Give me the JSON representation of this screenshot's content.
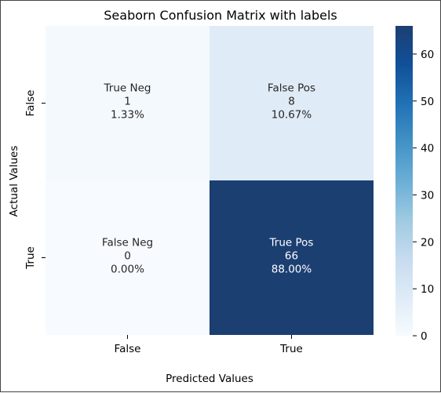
{
  "chart_data": {
    "type": "heatmap",
    "title": "Seaborn Confusion Matrix with labels",
    "xlabel": "Predicted Values",
    "ylabel": "Actual Values",
    "x_categories": [
      "False",
      "True"
    ],
    "y_categories": [
      "False",
      "True"
    ],
    "cells": [
      [
        {
          "name": "True Neg",
          "count": 1,
          "percent": "1.33%",
          "value": 1
        },
        {
          "name": "False Pos",
          "count": 8,
          "percent": "10.67%",
          "value": 8
        }
      ],
      [
        {
          "name": "False Neg",
          "count": 0,
          "percent": "0.00%",
          "value": 0
        },
        {
          "name": "True Pos",
          "count": 66,
          "percent": "88.00%",
          "value": 66
        }
      ]
    ],
    "colorbar": {
      "colormap": "Blues",
      "range": [
        0,
        66
      ],
      "ticks": [
        0,
        10,
        20,
        30,
        40,
        50,
        60
      ]
    },
    "colors": {
      "low": "#f7fbff",
      "high": "#1c3f72"
    }
  }
}
